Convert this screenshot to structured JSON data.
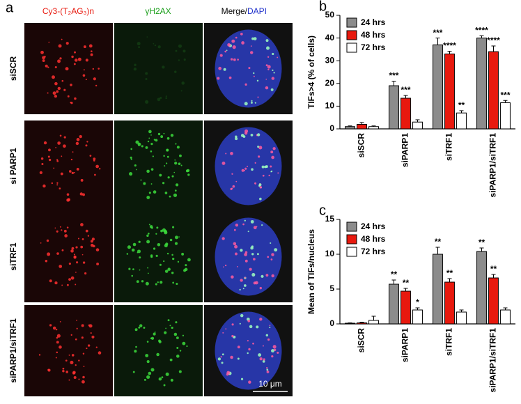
{
  "panel_a": {
    "panel_label": "a",
    "column_headers": [
      "Cy3-(T₂AG₃)n",
      "γH2AX",
      "Merge/",
      "DAPI"
    ],
    "row_labels": [
      "siSCR",
      "si PARP1",
      "siTRF1",
      "siPARP1/siTRF1"
    ],
    "scale_bar": "10 μm"
  },
  "chart_data": [
    {
      "type": "bar",
      "panel_label": "b",
      "y_label": "TIFs>4 (% of cells)",
      "categories": [
        "siSCR",
        "siPARP1",
        "siTRF1",
        "siPARP1/siTRF1"
      ],
      "ylim": [
        0,
        50
      ],
      "yticks": [
        0,
        10,
        20,
        30,
        40,
        50
      ],
      "legend": "upper left",
      "series": [
        {
          "name": "24 hrs",
          "color": "#8c8c8c",
          "values": [
            1,
            19,
            37,
            40
          ],
          "errors": [
            0.3,
            2,
            3,
            1
          ],
          "significance": [
            null,
            "***",
            "***",
            "****"
          ]
        },
        {
          "name": "48 hrs",
          "color": "#e8190e",
          "values": [
            2,
            13.5,
            33,
            34
          ],
          "errors": [
            0.8,
            1.2,
            1.2,
            2.5
          ],
          "significance": [
            null,
            "***",
            "****",
            "****"
          ]
        },
        {
          "name": "72 hrs",
          "color": "#ffffff",
          "values": [
            1,
            3,
            7,
            11.5
          ],
          "errors": [
            0.3,
            1,
            1,
            1
          ],
          "significance": [
            null,
            null,
            "**",
            "***"
          ]
        }
      ]
    },
    {
      "type": "bar",
      "panel_label": "c",
      "y_label": "Mean of TIFs/nucleus",
      "categories": [
        "siSCR",
        "siPARP1",
        "siTRF1",
        "siPARP1/siTRF1"
      ],
      "ylim": [
        0,
        15
      ],
      "yticks": [
        0,
        5,
        10,
        15
      ],
      "legend": "upper left",
      "series": [
        {
          "name": "24 hrs",
          "color": "#8c8c8c",
          "values": [
            0.1,
            5.7,
            10,
            10.4
          ],
          "errors": [
            0.05,
            0.6,
            1,
            0.5
          ],
          "significance": [
            null,
            "**",
            "**",
            "**"
          ]
        },
        {
          "name": "48 hrs",
          "color": "#e8190e",
          "values": [
            0.15,
            4.7,
            6,
            6.6
          ],
          "errors": [
            0.1,
            0.4,
            0.5,
            0.5
          ],
          "significance": [
            null,
            "**",
            "**",
            "**"
          ]
        },
        {
          "name": "72 hrs",
          "color": "#ffffff",
          "values": [
            0.5,
            2,
            1.7,
            2
          ],
          "errors": [
            0.6,
            0.3,
            0.3,
            0.3
          ],
          "significance": [
            null,
            "*",
            null,
            null
          ]
        }
      ]
    }
  ]
}
